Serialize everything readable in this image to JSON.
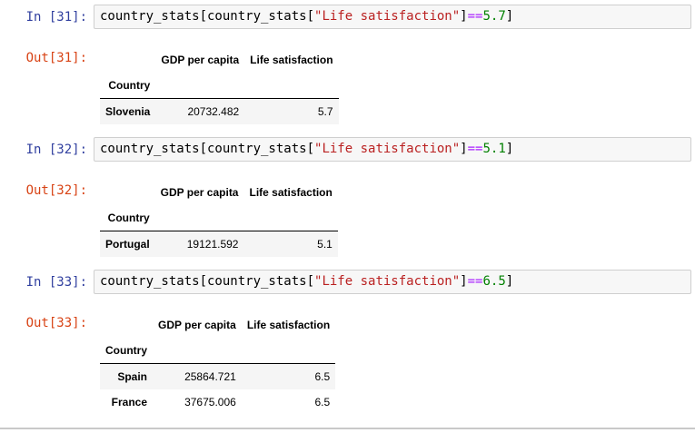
{
  "colors": {
    "in_prompt": "#303F9F",
    "out_prompt": "#D84315",
    "code_string": "#BA2121",
    "code_operator": "#AA22FF",
    "code_number": "#008000",
    "input_bg": "#f7f7f7",
    "input_border": "#cfcfcf",
    "row_stripe": "#f5f5f5",
    "divider": "#c9c9c9"
  },
  "cells": [
    {
      "in_prompt": "In [31]:",
      "out_prompt": "Out[31]:",
      "code": {
        "pre": "country_stats[country_stats[",
        "string": "\"Life satisfaction\"",
        "close_bracket": "]",
        "op": "==",
        "number": "5.7",
        "end_bracket": "]"
      },
      "table": {
        "col_headers": [
          "GDP per capita",
          "Life satisfaction"
        ],
        "index_name": "Country",
        "rows": [
          {
            "index": "Slovenia",
            "gdp": "20732.482",
            "life": "5.7"
          }
        ]
      }
    },
    {
      "in_prompt": "In [32]:",
      "out_prompt": "Out[32]:",
      "code": {
        "pre": "country_stats[country_stats[",
        "string": "\"Life satisfaction\"",
        "close_bracket": "]",
        "op": "==",
        "number": "5.1",
        "end_bracket": "]"
      },
      "table": {
        "col_headers": [
          "GDP per capita",
          "Life satisfaction"
        ],
        "index_name": "Country",
        "rows": [
          {
            "index": "Portugal",
            "gdp": "19121.592",
            "life": "5.1"
          }
        ]
      }
    },
    {
      "in_prompt": "In [33]:",
      "out_prompt": "Out[33]:",
      "code": {
        "pre": "country_stats[country_stats[",
        "string": "\"Life satisfaction\"",
        "close_bracket": "]",
        "op": "==",
        "number": "6.5",
        "end_bracket": "]"
      },
      "table": {
        "col_headers": [
          "GDP per capita",
          "Life satisfaction"
        ],
        "index_name": "Country",
        "rows": [
          {
            "index": "Spain",
            "gdp": "25864.721",
            "life": "6.5"
          },
          {
            "index": "France",
            "gdp": "37675.006",
            "life": "6.5"
          }
        ]
      }
    }
  ]
}
